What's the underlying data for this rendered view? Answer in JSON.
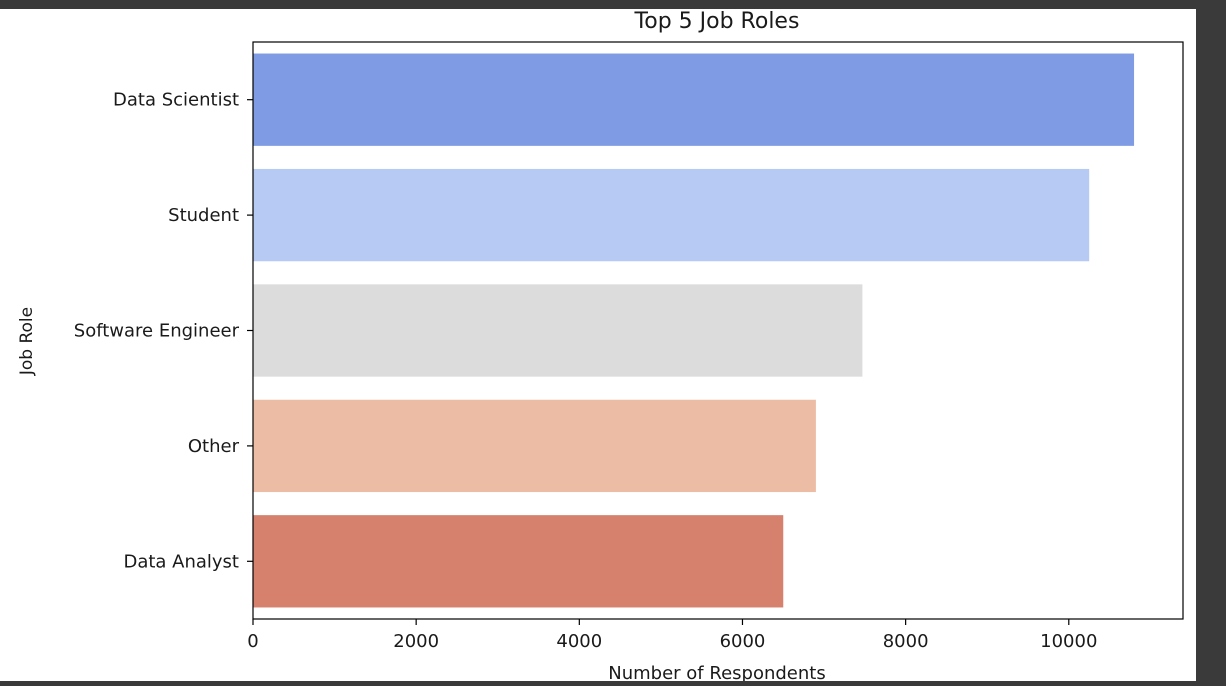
{
  "chart_data": {
    "type": "bar",
    "orientation": "horizontal",
    "title": "Top 5 Job Roles",
    "xlabel": "Number of Respondents",
    "ylabel": "Job Role",
    "categories": [
      "Data Scientist",
      "Student",
      "Software Engineer",
      "Other",
      "Data Analyst"
    ],
    "values": [
      10800,
      10250,
      7470,
      6900,
      6500
    ],
    "colors": [
      "#7f9be3",
      "#b6caf3",
      "#dcdcdc",
      "#ecbca5",
      "#d6806e"
    ],
    "xlim": [
      0,
      11400
    ],
    "xticks": [
      0,
      2000,
      4000,
      6000,
      8000,
      10000
    ],
    "xtick_labels": [
      "0",
      "2000",
      "4000",
      "6000",
      "8000",
      "10000"
    ],
    "grid": false,
    "legend": "none"
  }
}
